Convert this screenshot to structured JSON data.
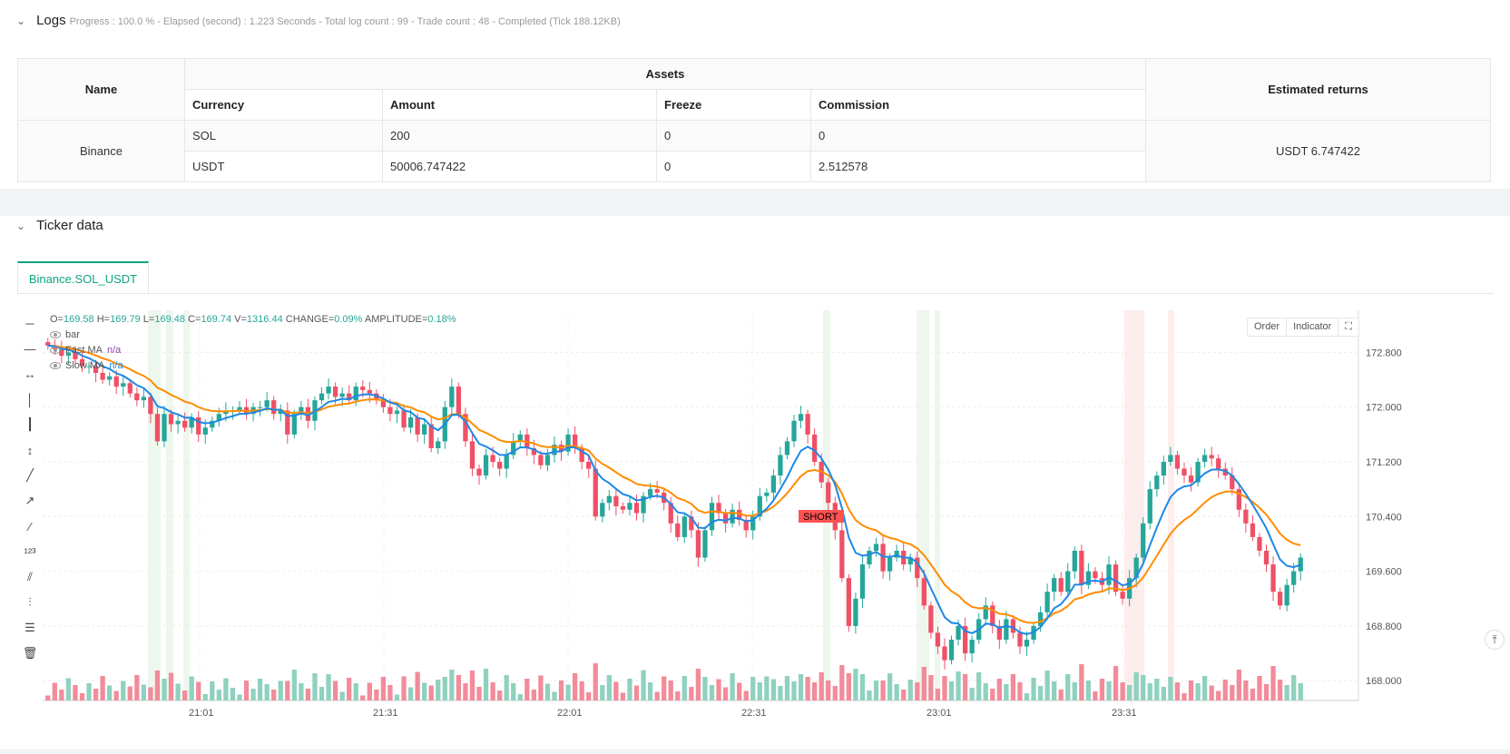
{
  "logs": {
    "title": "Logs",
    "status": "Progress : 100.0 % - Elapsed (second) : 1.223  Seconds - Total log count : 99 - Trade count : 48 - Completed (Tick 188.12KB)",
    "table": {
      "name_header": "Name",
      "assets_header": "Assets",
      "returns_header": "Estimated returns",
      "columns": [
        "Currency",
        "Amount",
        "Freeze",
        "Commission"
      ],
      "exchange": "Binance",
      "rows": [
        {
          "currency": "SOL",
          "amount": "200",
          "freeze": "0",
          "commission": "0"
        },
        {
          "currency": "USDT",
          "amount": "50006.747422",
          "freeze": "0",
          "commission": "2.512578"
        }
      ],
      "estimated_returns": "USDT 6.747422"
    }
  },
  "ticker": {
    "title": "Ticker data",
    "tab": "Binance.SOL_USDT",
    "buttons": {
      "order": "Order",
      "indicator": "Indicator"
    },
    "ohlc": {
      "o_label": "O=",
      "o": "169.58",
      "h_label": "H=",
      "h": "169.79",
      "l_label": "L=",
      "l": "169.48",
      "c_label": "C=",
      "c": "169.74",
      "v_label": "V=",
      "v": "1316.44",
      "change_label": "CHANGE=",
      "change": "0.09%",
      "amp_label": "AMPLITUDE=",
      "amp": "0.18%"
    },
    "legend": [
      {
        "name": "bar",
        "value": ""
      },
      {
        "name": "Fast MA",
        "value": "n/a"
      },
      {
        "name": "Slow MA",
        "value": "n/a"
      }
    ],
    "tools": [
      "horizontal-line-icon",
      "horizontal-ray-icon",
      "extended-line-icon",
      "vertical-line-icon",
      "vertical-segment-icon",
      "vertical-ray-icon",
      "trend-line-icon",
      "trend-ray-icon",
      "trend-extended-icon",
      "price-label-icon",
      "parallel-channel-icon",
      "pitchfork-icon",
      "fib-retracement-icon",
      "trash-icon"
    ]
  },
  "chart_data": {
    "type": "candlestick",
    "y_ticks": [
      "172.800",
      "172.000",
      "171.200",
      "170.400",
      "169.600",
      "168.800",
      "168.000"
    ],
    "x_ticks": [
      "21:01",
      "21:31",
      "22:01",
      "22:31",
      "23:01",
      "23:31"
    ],
    "ylim": [
      167.95,
      173.15
    ],
    "closes": [
      172.9,
      172.85,
      172.75,
      172.8,
      172.7,
      172.6,
      172.6,
      172.5,
      172.4,
      172.45,
      172.3,
      172.35,
      172.2,
      172.1,
      172.15,
      171.9,
      171.5,
      171.9,
      171.75,
      171.8,
      171.7,
      171.85,
      171.6,
      171.7,
      171.8,
      171.9,
      171.95,
      171.95,
      172.0,
      171.9,
      172.0,
      172.0,
      172.1,
      171.9,
      171.95,
      171.6,
      171.9,
      172.0,
      171.8,
      172.1,
      172.2,
      172.3,
      172.15,
      172.2,
      172.1,
      172.3,
      172.25,
      172.2,
      172.1,
      172.0,
      171.9,
      171.95,
      171.7,
      171.85,
      171.6,
      171.75,
      171.4,
      171.5,
      172.0,
      172.3,
      171.9,
      171.5,
      171.1,
      171.0,
      171.3,
      171.2,
      171.1,
      171.3,
      171.5,
      171.6,
      171.4,
      171.3,
      171.15,
      171.3,
      171.45,
      171.35,
      171.6,
      171.4,
      171.2,
      171.1,
      170.4,
      170.6,
      170.7,
      170.55,
      170.5,
      170.6,
      170.45,
      170.7,
      170.8,
      170.75,
      170.6,
      170.3,
      170.1,
      170.4,
      170.2,
      169.8,
      170.2,
      170.6,
      170.45,
      170.3,
      170.5,
      170.35,
      170.2,
      170.4,
      170.7,
      170.75,
      171.0,
      171.3,
      171.5,
      171.8,
      171.9,
      171.6,
      171.2,
      170.9,
      170.6,
      170.2,
      169.5,
      168.8,
      169.2,
      169.7,
      169.9,
      170.0,
      169.6,
      169.8,
      169.9,
      169.7,
      169.8,
      169.5,
      169.1,
      168.7,
      168.5,
      168.3,
      168.6,
      168.8,
      168.4,
      168.6,
      168.9,
      169.1,
      168.8,
      168.6,
      168.9,
      168.7,
      168.5,
      168.6,
      168.8,
      169.0,
      169.3,
      169.5,
      169.3,
      169.6,
      169.9,
      169.4,
      169.6,
      169.5,
      169.4,
      169.7,
      169.3,
      169.2,
      169.5,
      169.8,
      170.3,
      170.8,
      171.0,
      171.2,
      171.3,
      171.1,
      171.0,
      170.9,
      171.2,
      171.3,
      171.25,
      171.1,
      171.0,
      170.8,
      170.5,
      170.3,
      170.1,
      169.9,
      169.7,
      169.3,
      169.1,
      169.4,
      169.6,
      169.8
    ]
  }
}
